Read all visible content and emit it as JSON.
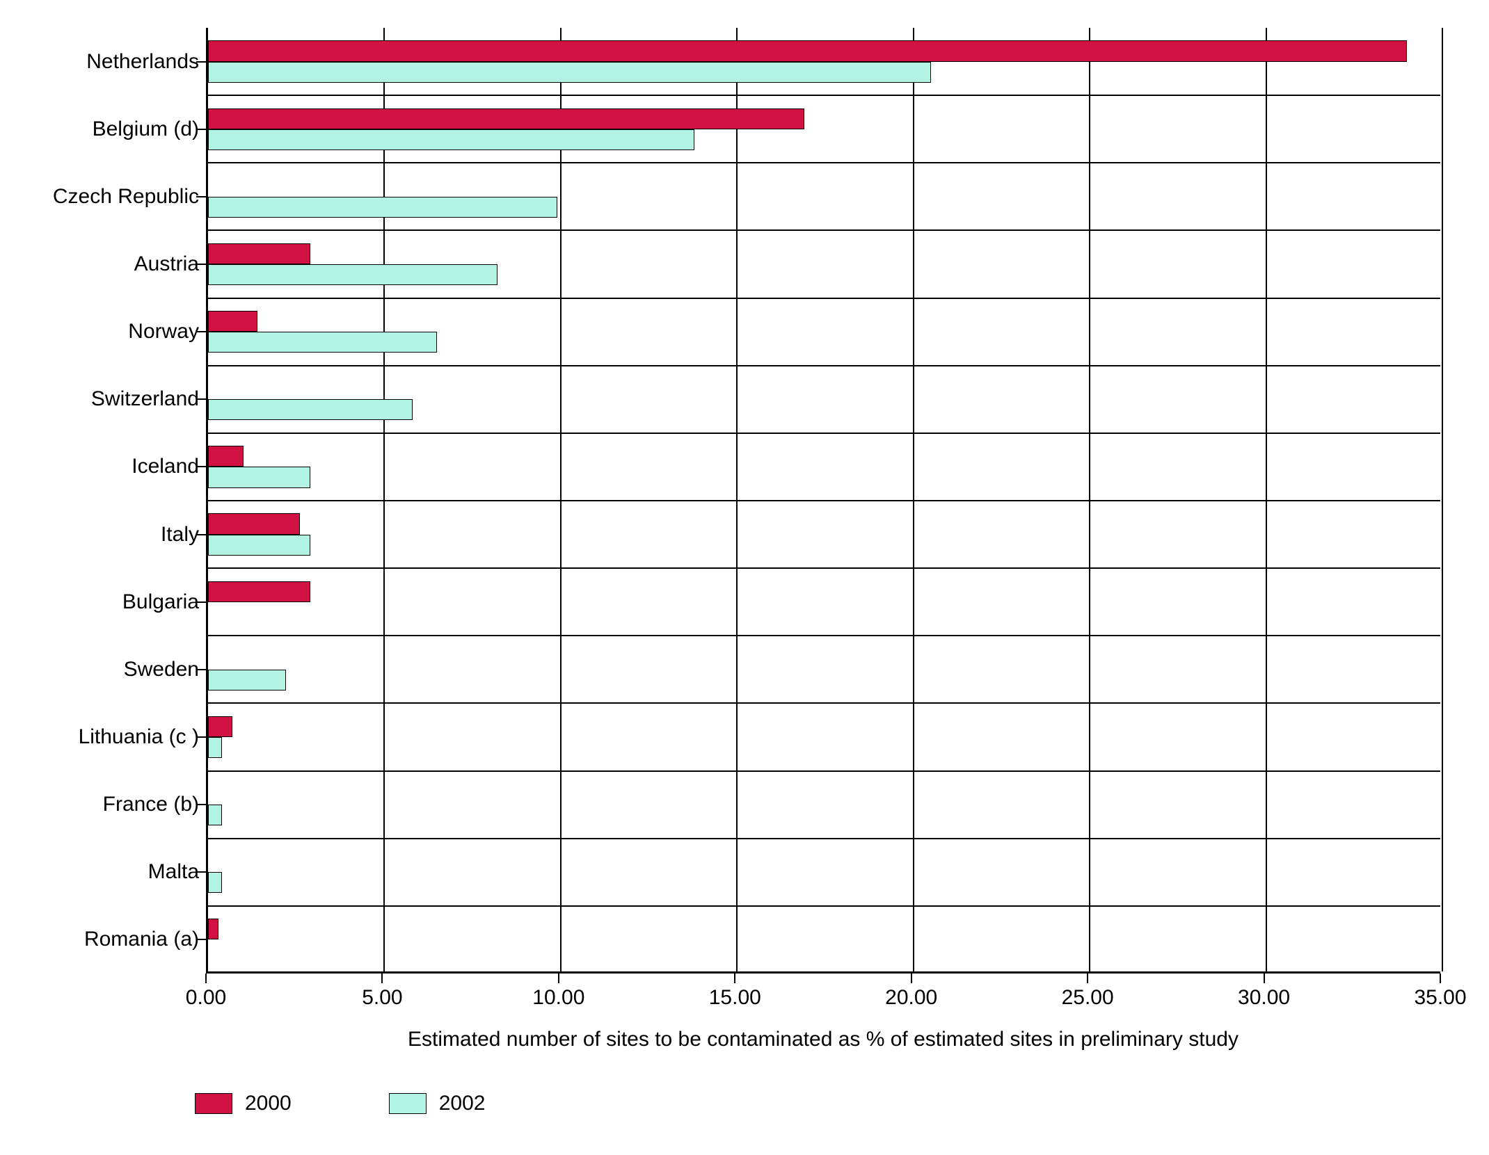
{
  "chart": {
    "type": "bar",
    "orientation": "horizontal",
    "background_color": "#ffffff",
    "grid_color": "#000000",
    "axis_color": "#000000",
    "xlim": [
      0.0,
      35.0
    ],
    "xtick_step": 5.0,
    "xticks": [
      "0.00",
      "5.00",
      "10.00",
      "15.00",
      "20.00",
      "25.00",
      "30.00",
      "35.00"
    ],
    "xlabel": "Estimated number of sites to be contaminated as % of estimated sites in preliminary study",
    "label_fontsize": 30,
    "tick_fontsize": 30,
    "categories": [
      "Netherlands",
      "Belgium (d)",
      "Czech Republic",
      "Austria",
      "Norway",
      "Switzerland",
      "Iceland",
      "Italy",
      "Bulgaria",
      "Sweden",
      "Lithuania (c )",
      "France (b)",
      "Malta",
      "Romania (a)"
    ],
    "series": [
      {
        "name": "2000",
        "color": "#d21143",
        "values": [
          34.0,
          16.9,
          0.0,
          2.9,
          1.4,
          0.0,
          1.0,
          2.6,
          2.9,
          0.0,
          0.7,
          0.0,
          0.0,
          0.3
        ]
      },
      {
        "name": "2002",
        "color": "#b3f3e4",
        "values": [
          20.5,
          13.8,
          9.9,
          8.2,
          6.5,
          5.8,
          2.9,
          2.9,
          0.0,
          2.2,
          0.4,
          0.4,
          0.4,
          0.0
        ]
      }
    ],
    "bar_pair_height_ratio": 0.62,
    "legend": {
      "position": "bottom-left",
      "items": [
        {
          "label": "2000",
          "color": "#d21143"
        },
        {
          "label": "2002",
          "color": "#b3f3e4"
        }
      ]
    }
  }
}
